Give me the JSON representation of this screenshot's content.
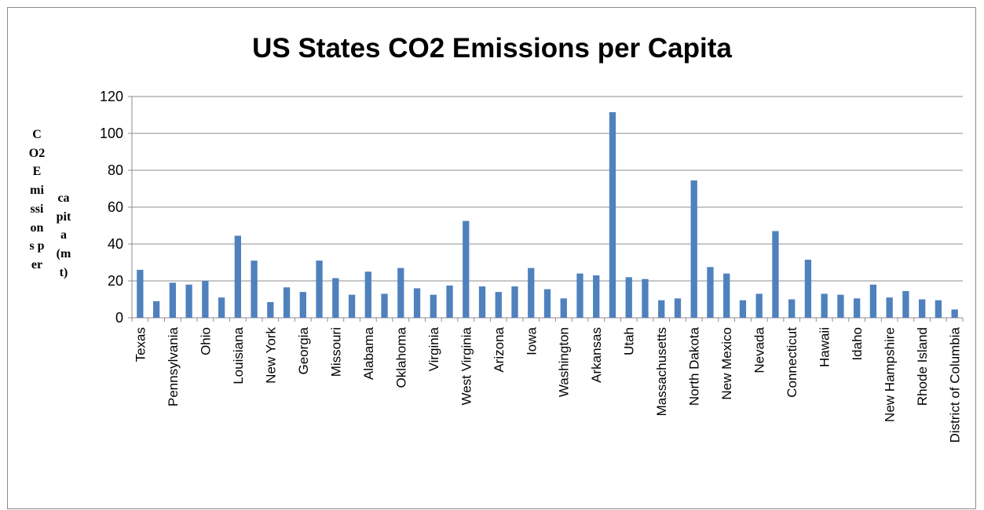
{
  "chart_data": {
    "type": "bar",
    "title": "US States CO2 Emissions per Capita",
    "ylabel": "CO2 Emissions per capita (mt)",
    "ylim": [
      0,
      120
    ],
    "yticks": [
      0,
      20,
      40,
      60,
      80,
      100,
      120
    ],
    "grid": true,
    "bar_color": "#4f81bd",
    "categories": [
      "Texas",
      "",
      "Pennsylvania",
      "",
      "Ohio",
      "",
      "Louisiana",
      "",
      "New York",
      "",
      "Georgia",
      "",
      "Missouri",
      "",
      "Alabama",
      "",
      "Oklahoma",
      "",
      "Virginia",
      "",
      "West Virginia",
      "",
      "Arizona",
      "",
      "Iowa",
      "",
      "Washington",
      "",
      "Arkansas",
      "",
      "Utah",
      "",
      "Massachusetts",
      "",
      "North Dakota",
      "",
      "New Mexico",
      "",
      "Nevada",
      "",
      "Connecticut",
      "",
      "Hawaii",
      "",
      "Idaho",
      "",
      "New Hampshire",
      "",
      "Rhode Island",
      "",
      "District of Columbia"
    ],
    "values": [
      26,
      9,
      19,
      18,
      20,
      11,
      44.5,
      31,
      8.5,
      16.5,
      14,
      31,
      21.5,
      12.5,
      25,
      13,
      27,
      16,
      12.5,
      17.5,
      52.5,
      17,
      14,
      17,
      27,
      15.5,
      10.5,
      24,
      23,
      111.5,
      22,
      21,
      9.5,
      10.5,
      74.5,
      27.5,
      24,
      9.5,
      13,
      47,
      10,
      31.5,
      13,
      12.5,
      10.5,
      18,
      11,
      14.5,
      10,
      9.5,
      4.5
    ]
  },
  "ylabel_columns": [
    "CO2 Emissions per",
    "capita (mt)"
  ]
}
